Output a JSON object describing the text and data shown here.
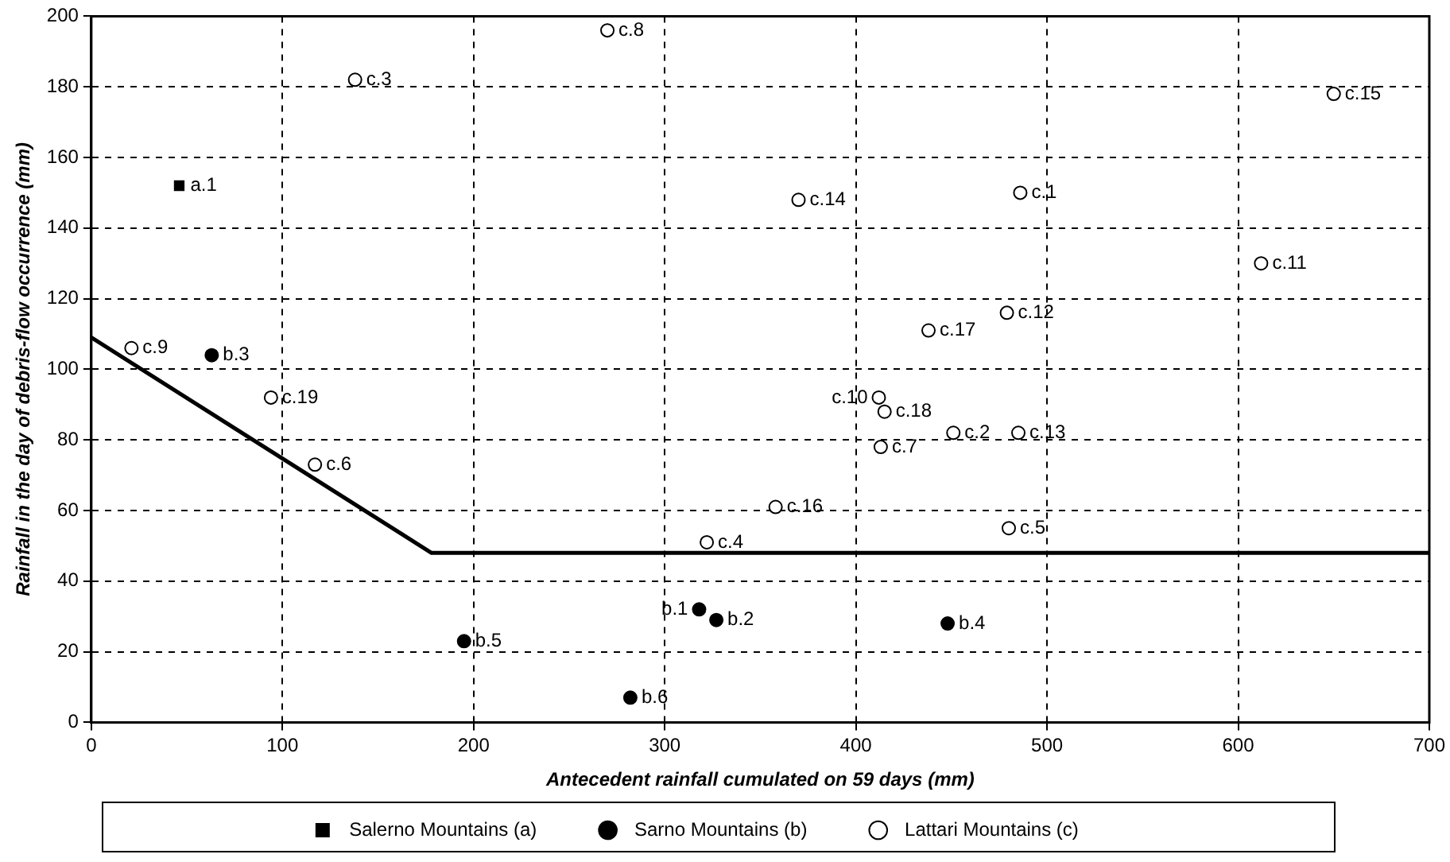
{
  "chart_data": {
    "type": "scatter",
    "xlabel": "Antecedent rainfall cumulated on 59 days (mm)",
    "ylabel": "Rainfall in the day of debris-flow occurrence (mm)",
    "xlim": [
      0,
      700
    ],
    "xticks": [
      0,
      100,
      200,
      300,
      400,
      500,
      600,
      700
    ],
    "ylim": [
      0,
      200
    ],
    "yticks": [
      0,
      20,
      40,
      60,
      80,
      100,
      120,
      140,
      160,
      180,
      200
    ],
    "grid": true,
    "legend": "bottom",
    "series": [
      {
        "name": "Salerno Mountains (a)",
        "color": "#000000",
        "marker": "square",
        "x": [
          46
        ],
        "values": [
          152
        ]
      },
      {
        "name": "Sarno Mountains (b)",
        "color": "#000000",
        "marker": "circle",
        "x": [
          318,
          327,
          63,
          448,
          195,
          282
        ],
        "values": [
          32,
          29,
          104,
          28,
          23,
          7
        ]
      },
      {
        "name": "Lattari Mountains (c)",
        "color": "#ffffff",
        "marker": "circle",
        "x": [
          486,
          451,
          138,
          322,
          480,
          117,
          413,
          270,
          21,
          412,
          612,
          479,
          485,
          370,
          650,
          358,
          438,
          415,
          94
        ],
        "values": [
          150,
          82,
          182,
          51,
          55,
          73,
          78,
          196,
          106,
          92,
          130,
          116,
          82,
          148,
          178,
          61,
          111,
          88,
          92
        ]
      },
      {
        "type": "line",
        "color": "#000000",
        "marker": "none",
        "line_style": "solid",
        "x": [
          0,
          178,
          700
        ],
        "values": [
          109,
          48,
          48
        ]
      }
    ],
    "annotations": [
      {
        "text": "a.1",
        "x": 46,
        "y": 152
      },
      {
        "text": "b.1",
        "x": 318,
        "y": 32
      },
      {
        "text": "b.2",
        "x": 327,
        "y": 29
      },
      {
        "text": "b.3",
        "x": 63,
        "y": 104
      },
      {
        "text": "b.4",
        "x": 448,
        "y": 28
      },
      {
        "text": "b.5",
        "x": 195,
        "y": 23
      },
      {
        "text": "b.6",
        "x": 282,
        "y": 7
      },
      {
        "text": "c.1",
        "x": 486,
        "y": 150
      },
      {
        "text": "c.2",
        "x": 451,
        "y": 82
      },
      {
        "text": "c.3",
        "x": 138,
        "y": 182
      },
      {
        "text": "c.4",
        "x": 322,
        "y": 51
      },
      {
        "text": "c.5",
        "x": 480,
        "y": 55
      },
      {
        "text": "c.6",
        "x": 117,
        "y": 73
      },
      {
        "text": "c.7",
        "x": 413,
        "y": 78
      },
      {
        "text": "c.8",
        "x": 270,
        "y": 196
      },
      {
        "text": "c.9",
        "x": 21,
        "y": 106
      },
      {
        "text": "c.10",
        "x": 412,
        "y": 92
      },
      {
        "text": "c.11",
        "x": 612,
        "y": 130
      },
      {
        "text": "c.12",
        "x": 479,
        "y": 116
      },
      {
        "text": "c.13",
        "x": 485,
        "y": 82
      },
      {
        "text": "c.14",
        "x": 370,
        "y": 148
      },
      {
        "text": "c.15",
        "x": 650,
        "y": 178
      },
      {
        "text": "c.16",
        "x": 358,
        "y": 61
      },
      {
        "text": "c.17",
        "x": 438,
        "y": 111
      },
      {
        "text": "c.18",
        "x": 415,
        "y": 88
      },
      {
        "text": "c.19",
        "x": 94,
        "y": 92
      }
    ]
  }
}
